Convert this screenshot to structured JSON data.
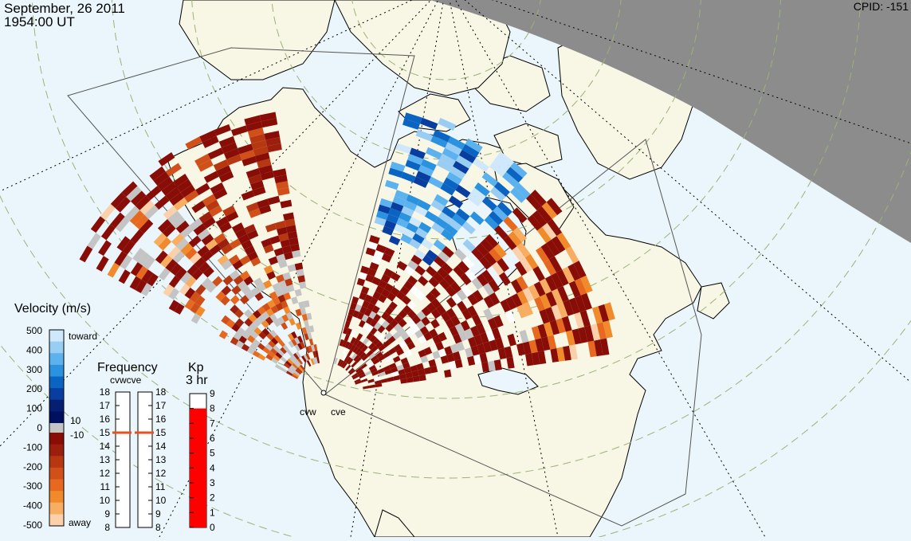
{
  "header": {
    "date": "September, 26 2011",
    "time": "1954:00 UT",
    "cpid": "CPID:  -151"
  },
  "colors": {
    "ocean": "#eaf6fb",
    "land": "#f8f6e4",
    "night": "#8c8c8c",
    "ground_scatter": "#c4c4c4",
    "kp_fill": "#ff0000",
    "freq_marker": "#e8501c"
  },
  "velocity_legend": {
    "title": "Velocity (m/s)",
    "ticks": [
      "500",
      "400",
      "300",
      "200",
      "100",
      "0",
      "-100",
      "-200",
      "-300",
      "-400",
      "-500"
    ],
    "toward_label": "toward",
    "away_label": "away",
    "gs_plus": "10",
    "gs_minus": "-10",
    "colors_top_to_bottom": [
      "#cfe8fb",
      "#99cdf4",
      "#5cb2ee",
      "#2b92e0",
      "#0b63c2",
      "#073ea0",
      "#051f73",
      "#001060",
      "#880d06",
      "#9b1f0c",
      "#b63710",
      "#d1501a",
      "#e6691f",
      "#f08a2b",
      "#f7ad62",
      "#fbd0ab"
    ]
  },
  "frequency_panel": {
    "title": "Frequency",
    "subtitle": "cvwcve",
    "ticks": [
      "18",
      "17",
      "16",
      "15",
      "14",
      "13",
      "12",
      "11",
      "10",
      "9",
      "8"
    ],
    "range_mhz": [
      8,
      18
    ],
    "cvw_mhz": 15,
    "cve_mhz": 15
  },
  "kp_panel": {
    "title": "Kp",
    "subtitle": "3 hr",
    "ticks": [
      "9",
      "8",
      "7",
      "6",
      "5",
      "4",
      "3",
      "2",
      "1",
      "0"
    ],
    "range": [
      0,
      9
    ],
    "value": 8
  },
  "radars": [
    {
      "name": "cvw"
    },
    {
      "name": "cve"
    }
  ]
}
